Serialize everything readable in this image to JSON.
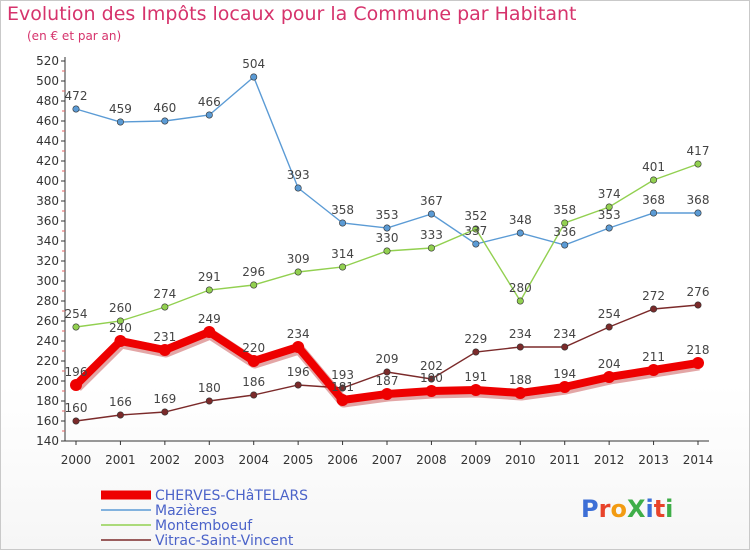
{
  "chart_data": {
    "type": "line",
    "title": "Evolution des Impôts locaux pour la Commune par Habitant",
    "subtitle": "(en € et par an)",
    "xlabel": "",
    "ylabel": "",
    "x": [
      "2000",
      "2001",
      "2002",
      "2003",
      "2004",
      "2005",
      "2006",
      "2007",
      "2008",
      "2009",
      "2010",
      "2011",
      "2012",
      "2013",
      "2014"
    ],
    "ylim": [
      140,
      520
    ],
    "yticks": [
      140,
      160,
      180,
      200,
      220,
      240,
      260,
      280,
      300,
      320,
      340,
      360,
      380,
      400,
      420,
      440,
      460,
      480,
      500,
      520
    ],
    "grid": false,
    "legend": "bottom-left",
    "series": [
      {
        "name": "CHERVES-CHâTELARS",
        "color": "#ee0000",
        "legend_color": "#4b63c9",
        "thick": true,
        "values": [
          196,
          240,
          231,
          249,
          220,
          234,
          181,
          187,
          190,
          191,
          188,
          194,
          204,
          211,
          218
        ]
      },
      {
        "name": "Mazières",
        "color": "#5b9bd5",
        "legend_color": "#4b63c9",
        "thick": false,
        "values": [
          472,
          459,
          460,
          466,
          504,
          393,
          358,
          353,
          367,
          337,
          348,
          336,
          353,
          368,
          368
        ]
      },
      {
        "name": "Montemboeuf",
        "color": "#92d050",
        "legend_color": "#4b63c9",
        "thick": false,
        "values": [
          254,
          260,
          274,
          291,
          296,
          309,
          314,
          330,
          333,
          352,
          280,
          358,
          374,
          401,
          417
        ]
      },
      {
        "name": "Vitrac-Saint-Vincent",
        "color": "#7b2a2a",
        "legend_color": "#4b63c9",
        "thick": false,
        "values": [
          160,
          166,
          169,
          180,
          186,
          196,
          193,
          209,
          202,
          229,
          234,
          234,
          254,
          272,
          276
        ]
      }
    ]
  },
  "watermark": {
    "text": "ProXiti"
  }
}
